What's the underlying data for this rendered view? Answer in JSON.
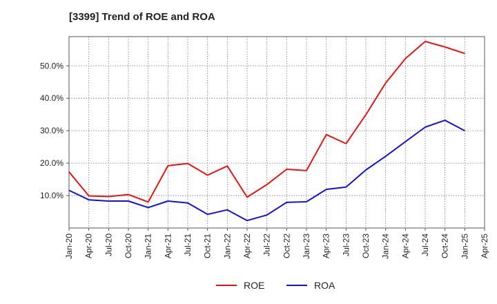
{
  "chart_data": {
    "type": "line",
    "title": "[3399]  Trend of ROE and ROA",
    "xlabel": "",
    "ylabel": "",
    "categories": [
      "Jan-20",
      "Apr-20",
      "Jul-20",
      "Oct-20",
      "Jan-21",
      "Apr-21",
      "Jul-21",
      "Oct-21",
      "Jan-22",
      "Apr-22",
      "Jul-22",
      "Oct-22",
      "Jan-23",
      "Apr-23",
      "Jul-23",
      "Oct-23",
      "Jan-24",
      "Apr-24",
      "Jul-24",
      "Oct-24",
      "Jan-25",
      "Apr-25"
    ],
    "ylim": [
      0,
      59
    ],
    "yticks": [
      10,
      20,
      30,
      40,
      50
    ],
    "ytick_labels": [
      "10.0%",
      "20.0%",
      "30.0%",
      "40.0%",
      "50.0%"
    ],
    "grid": true,
    "legend_position": "bottom-center",
    "series": [
      {
        "name": "ROE",
        "color": "#ee1111",
        "values": [
          17.3,
          9.9,
          9.7,
          10.3,
          8.0,
          19.2,
          19.9,
          16.3,
          19.1,
          9.5,
          13.4,
          18.1,
          17.7,
          28.8,
          26.0,
          34.9,
          44.7,
          52.2,
          57.5,
          55.8,
          53.8,
          null
        ]
      },
      {
        "name": "ROA",
        "color": "#1111dd",
        "values": [
          11.6,
          8.7,
          8.3,
          8.3,
          6.3,
          8.3,
          7.7,
          4.2,
          5.6,
          2.3,
          4.0,
          7.9,
          8.1,
          11.9,
          12.6,
          17.9,
          22.1,
          26.6,
          31.1,
          33.2,
          30.0,
          null
        ]
      }
    ]
  }
}
